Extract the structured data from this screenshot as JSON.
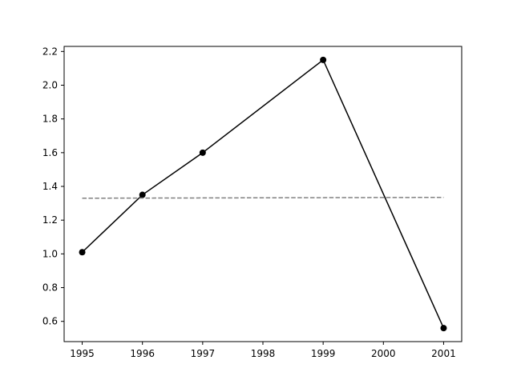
{
  "chart_data": {
    "type": "line",
    "title": "",
    "xlabel": "",
    "ylabel": "",
    "xlim": [
      1994.7,
      2001.3
    ],
    "ylim": [
      0.48,
      2.23
    ],
    "x_ticks": [
      1995,
      1996,
      1997,
      1998,
      1999,
      2000,
      2001
    ],
    "x_tick_labels": [
      "1995",
      "1996",
      "1997",
      "1998",
      "1999",
      "2000",
      "2001"
    ],
    "y_ticks": [
      0.6,
      0.8,
      1.0,
      1.2,
      1.4,
      1.6,
      1.8,
      2.0,
      2.2
    ],
    "y_tick_labels": [
      "0.6",
      "0.8",
      "1.0",
      "1.2",
      "1.4",
      "1.6",
      "1.8",
      "2.0",
      "2.2"
    ],
    "grid": false,
    "series": [
      {
        "x": [
          1995,
          1996,
          1997,
          1999,
          2001
        ],
        "y": [
          1.01,
          1.35,
          1.6,
          2.15,
          0.56
        ],
        "color": "#000000",
        "line_style": "solid",
        "marker": "circle"
      },
      {
        "x": [
          1995,
          2001
        ],
        "y": [
          1.33,
          1.335
        ],
        "color": "#808080",
        "line_style": "dashed",
        "marker": "none"
      }
    ]
  }
}
